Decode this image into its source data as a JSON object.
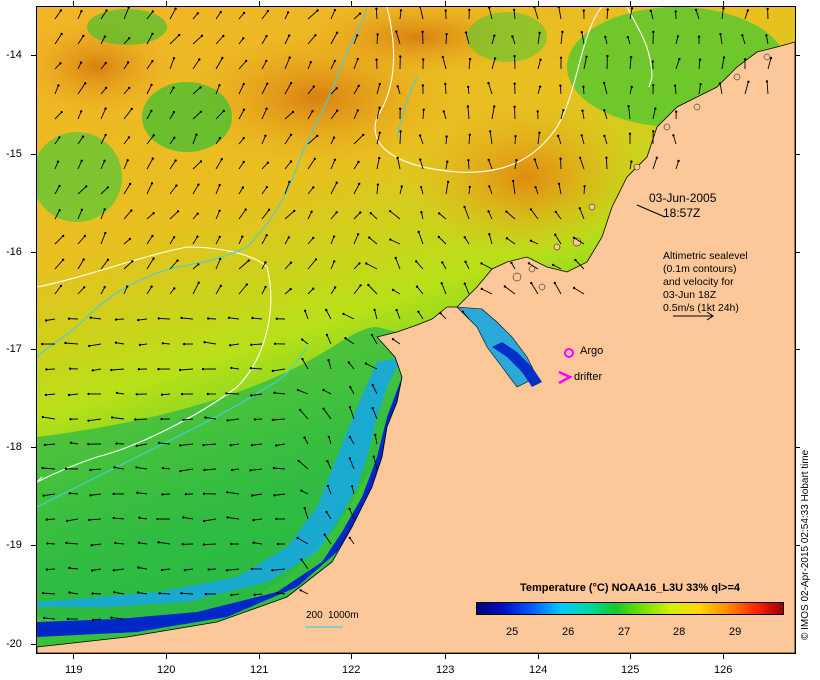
{
  "map": {
    "timestamp_date": "03-Jun-2005",
    "timestamp_time": "18:57Z",
    "legend_lines": [
      "Altimetric sealevel",
      "(0.1m contours)",
      "and velocity for",
      "03-Jun 18Z",
      "0.5m/s (1kt 24h)"
    ],
    "argo_label": "Argo",
    "drifter_label": "drifter",
    "depth_label_1": "200",
    "depth_label_2": "1000m",
    "land_color": "#fcc89a",
    "argo_color": "#ff00ff",
    "drifter_color": "#ff00ff"
  },
  "axes": {
    "y_ticks": [
      "-14",
      "-15",
      "-16",
      "-17",
      "-18",
      "-19",
      "-20"
    ],
    "x_ticks": [
      "119",
      "120",
      "121",
      "122",
      "123",
      "124",
      "125",
      "126"
    ]
  },
  "colorbar": {
    "title": "Temperature (°C) NOAA16_L3U 33% ql>=4",
    "ticks": [
      "25",
      "26",
      "27",
      "28",
      "29"
    ]
  },
  "credit": "© IMOS 02-Apr-2015 02:54:33 Hobart time"
}
